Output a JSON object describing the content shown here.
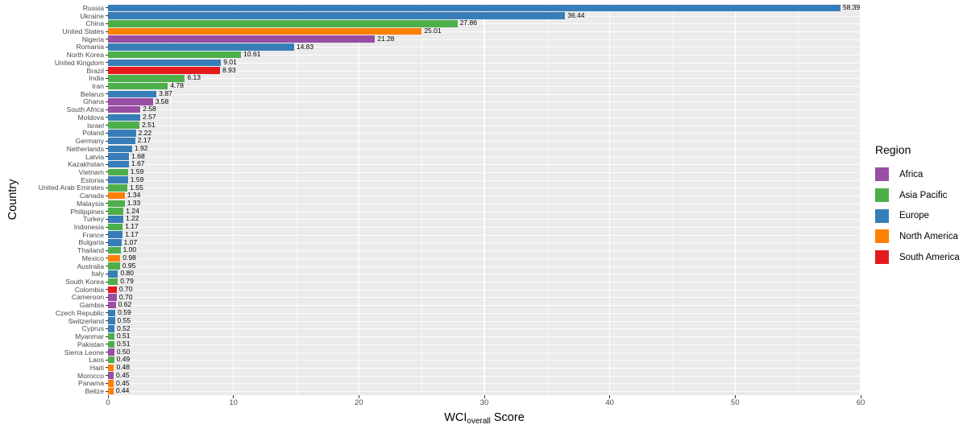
{
  "chart_data": {
    "type": "bar",
    "orientation": "horizontal",
    "title": "",
    "xlabel": {
      "main": "WCI",
      "sub": "overall",
      "rest": "Score"
    },
    "ylabel": "Country",
    "xlim": [
      0,
      60
    ],
    "xticks": [
      0,
      10,
      20,
      30,
      40,
      50,
      60
    ],
    "minor_xticks": [
      5,
      15,
      25,
      35,
      45,
      55
    ],
    "grid": "on",
    "panel_background": "#EBEBEB",
    "gridline_color": "#FFFFFF",
    "value_label_decimals": 2,
    "legend": {
      "title": "Region",
      "position": "right",
      "entries": [
        {
          "label": "Africa",
          "color": "#984EA3"
        },
        {
          "label": "Asia Pacific",
          "color": "#4DAF4A"
        },
        {
          "label": "Europe",
          "color": "#377EB8"
        },
        {
          "label": "North America",
          "color": "#FF7F00"
        },
        {
          "label": "South America",
          "color": "#E41A1C"
        }
      ]
    },
    "bars": [
      {
        "country": "Russia",
        "value": 58.39,
        "region": "Europe"
      },
      {
        "country": "Ukraine",
        "value": 36.44,
        "region": "Europe"
      },
      {
        "country": "China",
        "value": 27.86,
        "region": "Asia Pacific"
      },
      {
        "country": "United States",
        "value": 25.01,
        "region": "North America"
      },
      {
        "country": "Nigeria",
        "value": 21.28,
        "region": "Africa"
      },
      {
        "country": "Romania",
        "value": 14.83,
        "region": "Europe"
      },
      {
        "country": "North Korea",
        "value": 10.61,
        "region": "Asia Pacific"
      },
      {
        "country": "United Kingdom",
        "value": 9.01,
        "region": "Europe"
      },
      {
        "country": "Brazil",
        "value": 8.93,
        "region": "South America"
      },
      {
        "country": "India",
        "value": 6.13,
        "region": "Asia Pacific"
      },
      {
        "country": "Iran",
        "value": 4.78,
        "region": "Asia Pacific"
      },
      {
        "country": "Belarus",
        "value": 3.87,
        "region": "Europe"
      },
      {
        "country": "Ghana",
        "value": 3.58,
        "region": "Africa"
      },
      {
        "country": "South Africa",
        "value": 2.58,
        "region": "Africa"
      },
      {
        "country": "Moldova",
        "value": 2.57,
        "region": "Europe"
      },
      {
        "country": "Israel",
        "value": 2.51,
        "region": "Asia Pacific"
      },
      {
        "country": "Poland",
        "value": 2.22,
        "region": "Europe"
      },
      {
        "country": "Germany",
        "value": 2.17,
        "region": "Europe"
      },
      {
        "country": "Netherlands",
        "value": 1.92,
        "region": "Europe"
      },
      {
        "country": "Latvia",
        "value": 1.68,
        "region": "Europe"
      },
      {
        "country": "Kazakhstan",
        "value": 1.67,
        "region": "Europe"
      },
      {
        "country": "Vietnam",
        "value": 1.59,
        "region": "Asia Pacific"
      },
      {
        "country": "Estonia",
        "value": 1.59,
        "region": "Europe"
      },
      {
        "country": "United Arab Emirates",
        "value": 1.55,
        "region": "Asia Pacific"
      },
      {
        "country": "Canada",
        "value": 1.34,
        "region": "North America"
      },
      {
        "country": "Malaysia",
        "value": 1.33,
        "region": "Asia Pacific"
      },
      {
        "country": "Philippines",
        "value": 1.24,
        "region": "Asia Pacific"
      },
      {
        "country": "Turkey",
        "value": 1.22,
        "region": "Europe"
      },
      {
        "country": "Indonesia",
        "value": 1.17,
        "region": "Asia Pacific"
      },
      {
        "country": "France",
        "value": 1.17,
        "region": "Europe"
      },
      {
        "country": "Bulgaria",
        "value": 1.07,
        "region": "Europe"
      },
      {
        "country": "Thailand",
        "value": 1.0,
        "region": "Asia Pacific"
      },
      {
        "country": "Mexico",
        "value": 0.98,
        "region": "North America"
      },
      {
        "country": "Australia",
        "value": 0.95,
        "region": "Asia Pacific"
      },
      {
        "country": "Italy",
        "value": 0.8,
        "region": "Europe"
      },
      {
        "country": "South Korea",
        "value": 0.79,
        "region": "Asia Pacific"
      },
      {
        "country": "Colombia",
        "value": 0.7,
        "region": "South America"
      },
      {
        "country": "Cameroon",
        "value": 0.7,
        "region": "Africa"
      },
      {
        "country": "Gambia",
        "value": 0.62,
        "region": "Africa"
      },
      {
        "country": "Czech Republic",
        "value": 0.59,
        "region": "Europe"
      },
      {
        "country": "Switzerland",
        "value": 0.55,
        "region": "Europe"
      },
      {
        "country": "Cyprus",
        "value": 0.52,
        "region": "Europe"
      },
      {
        "country": "Myanmar",
        "value": 0.51,
        "region": "Asia Pacific"
      },
      {
        "country": "Pakistan",
        "value": 0.51,
        "region": "Asia Pacific"
      },
      {
        "country": "Sierra Leone",
        "value": 0.5,
        "region": "Africa"
      },
      {
        "country": "Laos",
        "value": 0.49,
        "region": "Asia Pacific"
      },
      {
        "country": "Haiti",
        "value": 0.48,
        "region": "North America"
      },
      {
        "country": "Morocco",
        "value": 0.45,
        "region": "Africa"
      },
      {
        "country": "Panama",
        "value": 0.45,
        "region": "North America"
      },
      {
        "country": "Belize",
        "value": 0.44,
        "region": "North America"
      }
    ]
  }
}
